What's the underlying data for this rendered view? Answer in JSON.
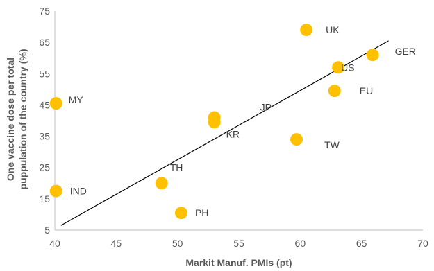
{
  "chart_data": {
    "type": "scatter",
    "title": "",
    "xlabel": "Markit Manuf. PMIs (pt)",
    "ylabel_lines": [
      "One vaccine dose per total",
      "puppulation of the country (%)"
    ],
    "xlim": [
      40,
      70
    ],
    "ylim": [
      5,
      75
    ],
    "xticks": [
      40,
      45,
      50,
      55,
      60,
      65,
      70
    ],
    "yticks": [
      5,
      15,
      25,
      35,
      45,
      55,
      65,
      75
    ],
    "grid": false,
    "legend": "none",
    "marker_color": "#FFC000",
    "trendline": {
      "x": [
        40.5,
        67.2
      ],
      "y": [
        6.5,
        65.5
      ],
      "color": "#000000"
    },
    "points": [
      {
        "label": "UK",
        "x": 60.5,
        "y": 69
      },
      {
        "label": "GER",
        "x": 65.9,
        "y": 61
      },
      {
        "label": "US",
        "x": 63.1,
        "y": 57
      },
      {
        "label": "EU",
        "x": 62.8,
        "y": 49.5
      },
      {
        "label": "MY",
        "x": 40.1,
        "y": 45.5
      },
      {
        "label": "JP",
        "x": 53.0,
        "y": 41
      },
      {
        "label": "KR",
        "x": 53.0,
        "y": 39.5
      },
      {
        "label": "TW",
        "x": 59.7,
        "y": 34
      },
      {
        "label": "TH",
        "x": 48.7,
        "y": 20
      },
      {
        "label": "IND",
        "x": 40.1,
        "y": 17.5
      },
      {
        "label": "PH",
        "x": 50.3,
        "y": 10.5
      }
    ]
  }
}
